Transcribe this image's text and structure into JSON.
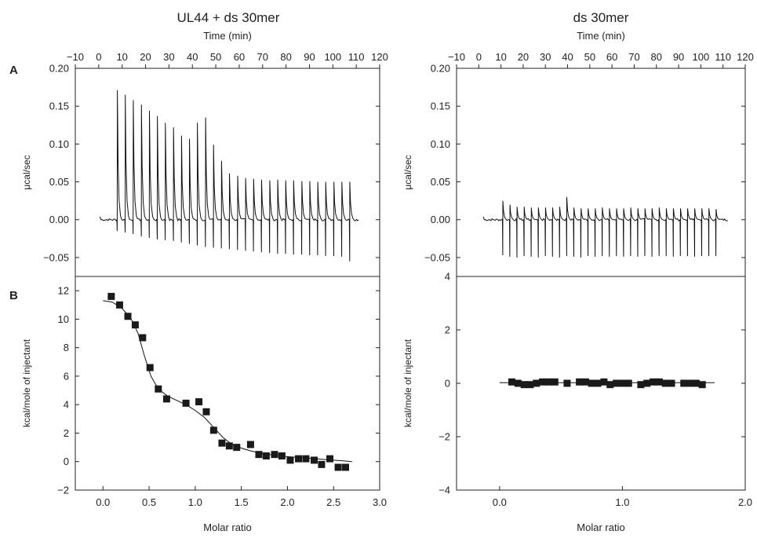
{
  "figure": {
    "left_title": "UL44 + ds 30mer",
    "right_title": "ds 30mer",
    "panel_label_a": "A",
    "panel_label_b": "B"
  },
  "chart_data": [
    {
      "panel": "A-left",
      "type": "line",
      "title": "UL44 + ds 30mer",
      "xlabel": "Time (min)",
      "ylabel": "μcal/sec",
      "xlim": [
        -10,
        120
      ],
      "ylim": [
        -0.075,
        0.2
      ],
      "xticks": [
        -10,
        0,
        10,
        20,
        30,
        40,
        50,
        60,
        70,
        80,
        90,
        100,
        110,
        120
      ],
      "yticks": [
        -0.05,
        0.0,
        0.05,
        0.1,
        0.15,
        0.2
      ],
      "ytick_labels": [
        "−0.05",
        "0.00",
        "0.05",
        "0.10",
        "0.15",
        "0.20"
      ],
      "xaxis_position": "top",
      "trace_start": 0.5,
      "trace_end": 111,
      "injections": {
        "times": [
          7.9,
          11.3,
          14.7,
          18.2,
          21.6,
          25.0,
          28.4,
          31.9,
          35.3,
          38.7,
          42.1,
          45.6,
          49.0,
          52.4,
          55.8,
          59.3,
          62.7,
          66.1,
          69.5,
          73.0,
          76.4,
          79.8,
          83.2,
          86.7,
          90.1,
          93.5,
          96.9,
          100.4,
          103.8,
          107.2
        ],
        "peaks": [
          0.171,
          0.165,
          0.158,
          0.152,
          0.144,
          0.137,
          0.128,
          0.122,
          0.111,
          0.107,
          0.128,
          0.135,
          0.099,
          0.078,
          0.061,
          0.058,
          0.055,
          0.054,
          0.053,
          0.052,
          0.053,
          0.052,
          0.052,
          0.051,
          0.051,
          0.05,
          0.05,
          0.05,
          0.05,
          0.05
        ],
        "troughs": [
          -0.015,
          -0.017,
          -0.019,
          -0.022,
          -0.024,
          -0.026,
          -0.027,
          -0.028,
          -0.03,
          -0.032,
          -0.034,
          -0.036,
          -0.037,
          -0.038,
          -0.039,
          -0.04,
          -0.041,
          -0.042,
          -0.043,
          -0.044,
          -0.045,
          -0.045,
          -0.046,
          -0.046,
          -0.047,
          -0.047,
          -0.048,
          -0.048,
          -0.049,
          -0.055
        ]
      }
    },
    {
      "panel": "A-right",
      "type": "line",
      "title": "ds 30mer",
      "xlabel": "Time (min)",
      "ylabel": "μcal/sec",
      "xlim": [
        -10,
        120
      ],
      "ylim": [
        -0.075,
        0.2
      ],
      "xticks": [
        -10,
        0,
        10,
        20,
        30,
        40,
        50,
        60,
        70,
        80,
        90,
        100,
        110,
        120
      ],
      "yticks": [
        -0.05,
        0.0,
        0.05,
        0.1,
        0.15,
        0.2
      ],
      "ytick_labels": [
        "−0.05",
        "0.00",
        "0.05",
        "0.10",
        "0.15",
        "0.20"
      ],
      "xaxis_position": "top",
      "trace_start": 2,
      "trace_end": 112,
      "injections": {
        "times": [
          10.8,
          14.0,
          17.2,
          20.4,
          23.6,
          26.8,
          30.0,
          33.2,
          36.4,
          39.6,
          42.8,
          46.0,
          49.2,
          52.4,
          55.6,
          58.8,
          62.0,
          65.2,
          68.4,
          71.6,
          74.8,
          78.0,
          81.2,
          84.4,
          87.6,
          90.8,
          94.0,
          97.2,
          100.4,
          103.6,
          106.8
        ],
        "peaks": [
          0.025,
          0.02,
          0.017,
          0.017,
          0.016,
          0.016,
          0.016,
          0.016,
          0.017,
          0.03,
          0.016,
          0.015,
          0.015,
          0.015,
          0.016,
          0.015,
          0.015,
          0.015,
          0.016,
          0.015,
          0.015,
          0.015,
          0.016,
          0.015,
          0.015,
          0.015,
          0.015,
          0.015,
          0.015,
          0.015,
          0.014
        ],
        "troughs": [
          -0.047,
          -0.049,
          -0.05,
          -0.048,
          -0.049,
          -0.05,
          -0.048,
          -0.049,
          -0.05,
          -0.048,
          -0.049,
          -0.05,
          -0.048,
          -0.049,
          -0.048,
          -0.049,
          -0.048,
          -0.049,
          -0.048,
          -0.049,
          -0.048,
          -0.049,
          -0.048,
          -0.048,
          -0.049,
          -0.048,
          -0.048,
          -0.049,
          -0.048,
          -0.048,
          -0.048
        ]
      }
    },
    {
      "panel": "B-left",
      "type": "scatter",
      "xlabel": "Molar ratio",
      "ylabel": "kcal/mole of injectant",
      "xlim": [
        -0.3,
        3.0
      ],
      "ylim": [
        -2,
        13
      ],
      "xticks": [
        0.0,
        0.5,
        1.0,
        1.5,
        2.0,
        2.5,
        3.0
      ],
      "xtick_labels": [
        "0.0",
        "0.5",
        "1.0",
        "1.5",
        "2.0",
        "2.5",
        "3.0"
      ],
      "yticks": [
        -2,
        0,
        2,
        4,
        6,
        8,
        10,
        12
      ],
      "ytick_labels": [
        "−2",
        "0",
        "2",
        "4",
        "6",
        "8",
        "10",
        "12"
      ],
      "x": [
        0.09,
        0.18,
        0.27,
        0.35,
        0.43,
        0.51,
        0.6,
        0.69,
        0.9,
        1.04,
        1.12,
        1.2,
        1.29,
        1.37,
        1.45,
        1.6,
        1.69,
        1.77,
        1.86,
        1.94,
        2.03,
        2.12,
        2.2,
        2.29,
        2.37,
        2.46,
        2.55,
        2.63
      ],
      "y": [
        11.6,
        11.0,
        10.2,
        9.6,
        8.7,
        6.6,
        5.1,
        4.4,
        4.1,
        4.2,
        3.5,
        2.2,
        1.3,
        1.1,
        1.0,
        1.2,
        0.5,
        0.4,
        0.5,
        0.4,
        0.1,
        0.2,
        0.2,
        0.1,
        -0.2,
        0.2,
        -0.4,
        -0.4
      ],
      "fit_x": [
        0.0,
        0.1,
        0.2,
        0.3,
        0.38,
        0.45,
        0.52,
        0.6,
        0.7,
        0.8,
        0.9,
        1.0,
        1.1,
        1.2,
        1.3,
        1.4,
        1.5,
        1.6,
        1.8,
        2.0,
        2.2,
        2.4,
        2.6,
        2.7
      ],
      "fit_y": [
        11.3,
        11.2,
        10.8,
        10.1,
        9.0,
        7.4,
        6.0,
        5.1,
        4.6,
        4.3,
        4.0,
        3.6,
        3.1,
        2.4,
        1.7,
        1.2,
        0.95,
        0.75,
        0.5,
        0.35,
        0.25,
        0.15,
        0.05,
        0.0
      ]
    },
    {
      "panel": "B-right",
      "type": "scatter",
      "xlabel": "Molar ratio",
      "ylabel": "kcal/mole of injectant",
      "xlim": [
        -0.35,
        2.0
      ],
      "ylim": [
        -4,
        4
      ],
      "xticks": [
        0.0,
        1.0,
        2.0
      ],
      "xtick_labels": [
        "0.0",
        "1.0",
        "2.0"
      ],
      "yticks": [
        -4,
        -2,
        0,
        2,
        4
      ],
      "ytick_labels": [
        "−4",
        "−2",
        "0",
        "2",
        "4"
      ],
      "x": [
        0.1,
        0.15,
        0.2,
        0.25,
        0.3,
        0.35,
        0.4,
        0.45,
        0.55,
        0.65,
        0.7,
        0.75,
        0.8,
        0.85,
        0.9,
        0.95,
        1.0,
        1.05,
        1.15,
        1.2,
        1.25,
        1.3,
        1.35,
        1.4,
        1.5,
        1.55,
        1.6,
        1.65
      ],
      "y": [
        0.05,
        0.0,
        -0.05,
        -0.05,
        0.0,
        0.05,
        0.05,
        0.05,
        0.0,
        0.05,
        0.05,
        0.0,
        0.0,
        0.05,
        -0.05,
        0.0,
        0.0,
        0.0,
        -0.05,
        0.0,
        0.05,
        0.05,
        0.0,
        0.0,
        0.0,
        0.0,
        0.0,
        -0.05
      ],
      "fit_x": [
        0.0,
        1.75
      ],
      "fit_y": [
        0.02,
        0.02
      ]
    }
  ]
}
